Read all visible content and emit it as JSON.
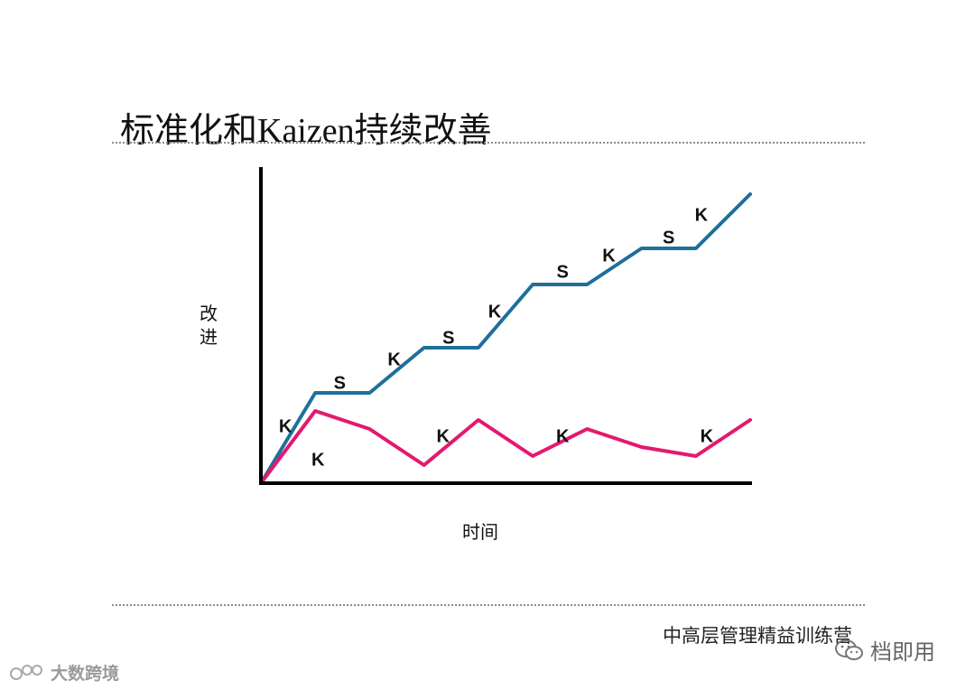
{
  "title": "标准化和Kaizen持续改善",
  "footer": "中高层管理精益训练营",
  "watermarks": {
    "right": "档即用",
    "left": "大数跨境"
  },
  "chart_data": {
    "type": "line",
    "ylabel": "改\n进",
    "xlabel": "时间",
    "colors": {
      "upper": "#1f6f9a",
      "lower": "#e3196f",
      "axis": "#000000",
      "text": "#111111"
    },
    "series": [
      {
        "id": "upper",
        "points": [
          [
            0,
            0
          ],
          [
            1,
            1
          ],
          [
            2,
            1
          ],
          [
            3,
            1.5
          ],
          [
            4,
            1.5
          ],
          [
            5,
            2.2
          ],
          [
            6,
            2.2
          ],
          [
            7,
            2.6
          ],
          [
            8,
            2.6
          ],
          [
            9,
            3.2
          ]
        ]
      },
      {
        "id": "lower",
        "points": [
          [
            0,
            0
          ],
          [
            1,
            0.8
          ],
          [
            2,
            0.6
          ],
          [
            3,
            0.2
          ],
          [
            4,
            0.7
          ],
          [
            5,
            0.3
          ],
          [
            6,
            0.6
          ],
          [
            7,
            0.4
          ],
          [
            8,
            0.3
          ],
          [
            9,
            0.7
          ]
        ]
      }
    ],
    "annotations": [
      {
        "text": "K",
        "x": 0.45,
        "y": 0.62
      },
      {
        "text": "S",
        "x": 1.45,
        "y": 1.1
      },
      {
        "text": "K",
        "x": 2.45,
        "y": 1.36
      },
      {
        "text": "S",
        "x": 3.45,
        "y": 1.6
      },
      {
        "text": "K",
        "x": 4.3,
        "y": 1.89
      },
      {
        "text": "S",
        "x": 5.55,
        "y": 2.33
      },
      {
        "text": "K",
        "x": 6.4,
        "y": 2.51
      },
      {
        "text": "S",
        "x": 7.5,
        "y": 2.71
      },
      {
        "text": "K",
        "x": 8.1,
        "y": 2.96
      },
      {
        "text": "K",
        "x": 1.05,
        "y": 0.25
      },
      {
        "text": "K",
        "x": 3.35,
        "y": 0.51
      },
      {
        "text": "K",
        "x": 5.55,
        "y": 0.51
      },
      {
        "text": "K",
        "x": 8.2,
        "y": 0.51
      }
    ],
    "xlim": [
      0,
      9
    ],
    "ylim": [
      0,
      3.5
    ]
  }
}
